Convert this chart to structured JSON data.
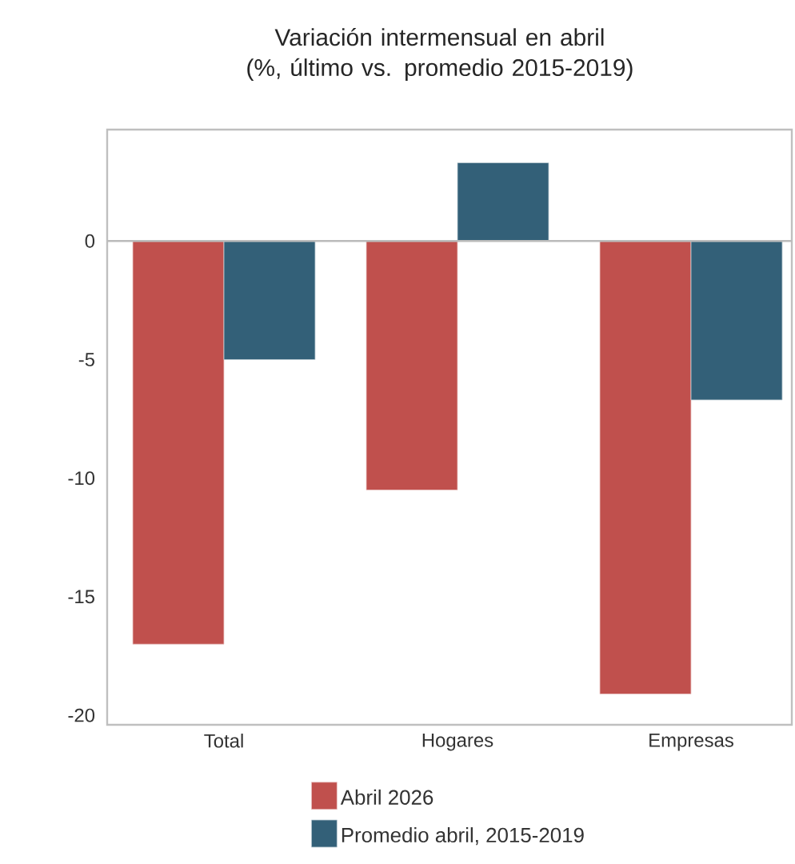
{
  "chart_data": {
    "type": "bar",
    "title": "Variación intermensual en abril\n(%, último vs. promedio 2015-2019)",
    "categories": [
      "Total",
      "Hogares",
      "Empresas"
    ],
    "series": [
      {
        "name": "Abril 2026",
        "color": "#c0504d",
        "values": [
          -17.0,
          -10.5,
          -19.1
        ]
      },
      {
        "name": "Promedio abril, 2015-2019",
        "color": "#336078",
        "values": [
          -5.0,
          3.3,
          -6.7
        ]
      }
    ],
    "ylim": [
      -20.4,
      4.7
    ],
    "yticks": [
      -20,
      -15,
      -10,
      -5,
      0
    ],
    "ref_lines": [
      {
        "axis": "y",
        "value": 0,
        "color": "#bbbbbb"
      }
    ],
    "grid": false,
    "legend": "bottom"
  }
}
